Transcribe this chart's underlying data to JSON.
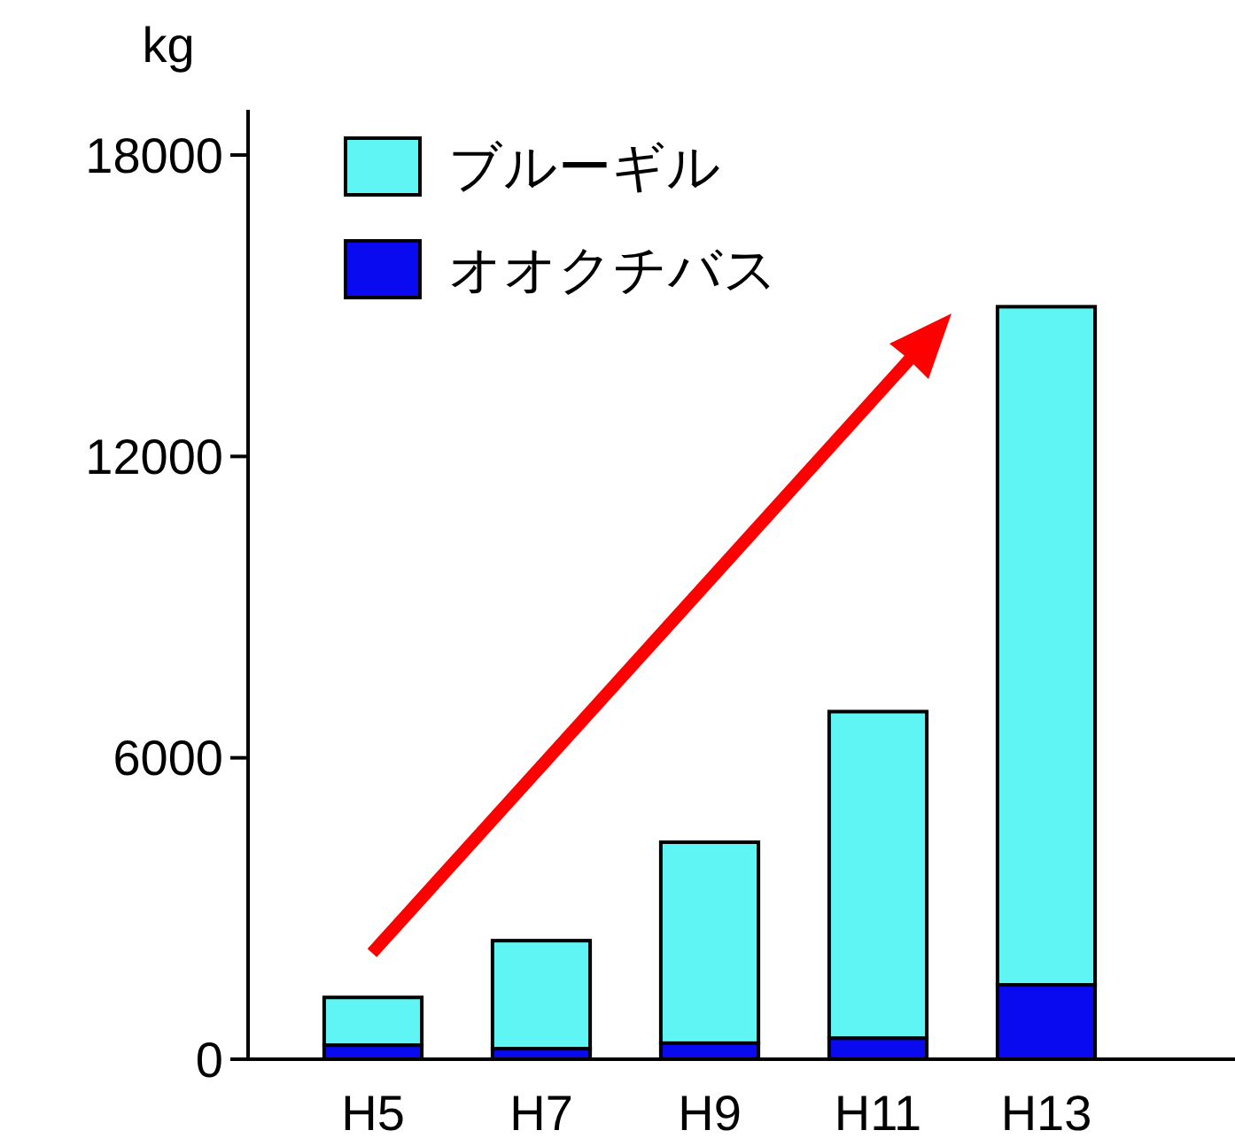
{
  "chart_data": {
    "type": "bar",
    "ylabel": "kg",
    "categories": [
      "H5",
      "H7",
      "H9",
      "H11",
      "H13"
    ],
    "stacked": true,
    "series": [
      {
        "name": "オオクチバス",
        "color": "#0a0af0",
        "values": [
          280,
          210,
          320,
          420,
          1480
        ]
      },
      {
        "name": "ブルーギル",
        "color": "#5ff5f5",
        "values": [
          950,
          2150,
          4000,
          6500,
          13500
        ]
      }
    ],
    "ylim": [
      0,
      18900
    ],
    "yticks": [
      0,
      6000,
      12000,
      18000
    ],
    "legend": "top left",
    "grid": false
  }
}
